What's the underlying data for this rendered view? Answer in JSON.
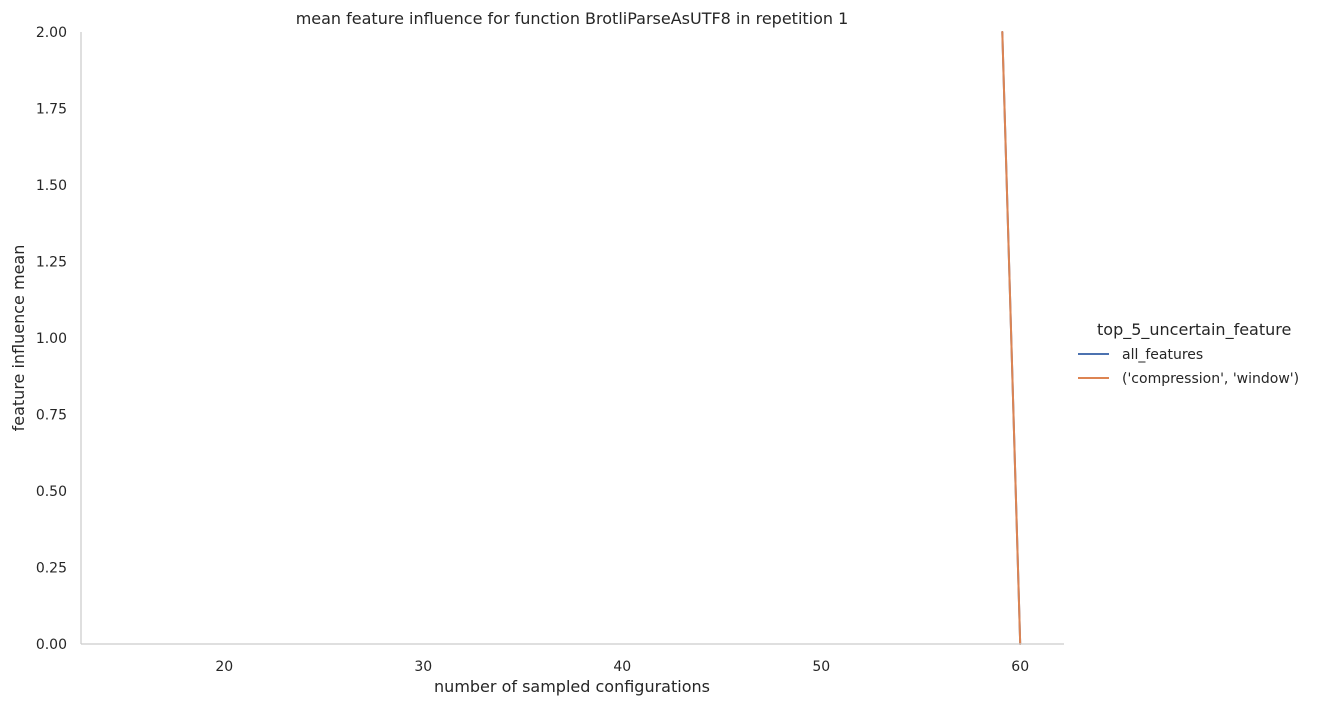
{
  "chart_data": {
    "type": "line",
    "title": "mean feature influence for function BrotliParseAsUTF8 in repetition 1",
    "xlabel": "number of sampled configurations",
    "ylabel": "feature influence mean",
    "xlim": [
      12.8,
      62.2
    ],
    "ylim": [
      0,
      2
    ],
    "x_ticks": [
      20,
      30,
      40,
      50,
      60
    ],
    "y_ticks": [
      0.0,
      0.25,
      0.5,
      0.75,
      1.0,
      1.25,
      1.5,
      1.75,
      2.0
    ],
    "y_tick_labels": [
      "0.00",
      "0.25",
      "0.50",
      "0.75",
      "1.00",
      "1.25",
      "1.50",
      "1.75",
      "2.00"
    ],
    "grid": false,
    "legend": {
      "title": "top_5_uncertain_feature",
      "placement": "right"
    },
    "series": [
      {
        "name": "all_features",
        "color": "#4c72b0",
        "x": [
          59.1,
          60.0
        ],
        "y": [
          2.0,
          0.0
        ]
      },
      {
        "name": "('compression', 'window')",
        "color": "#dd8452",
        "x": [
          59.1,
          60.0
        ],
        "y": [
          2.0,
          0.0
        ]
      }
    ]
  }
}
